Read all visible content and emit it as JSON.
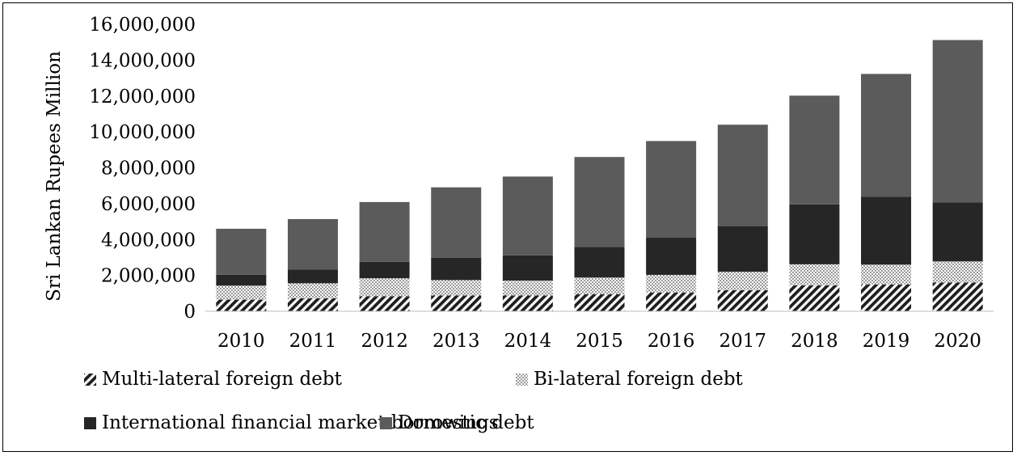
{
  "chart_data": {
    "type": "bar",
    "stacked": true,
    "ylabel": "Sri Lankan Rupees Million",
    "xlabel": "",
    "title": "",
    "ylim": [
      0,
      16000000
    ],
    "yticks": [
      0,
      2000000,
      4000000,
      6000000,
      8000000,
      10000000,
      12000000,
      14000000,
      16000000
    ],
    "ytick_labels": [
      "0",
      "2,000,000",
      "4,000,000",
      "6,000,000",
      "8,000,000",
      "10,000,000",
      "12,000,000",
      "14,000,000",
      "16,000,000"
    ],
    "grid": false,
    "legend_position": "bottom",
    "categories": [
      "2010",
      "2011",
      "2012",
      "2013",
      "2014",
      "2015",
      "2016",
      "2017",
      "2018",
      "2019",
      "2020"
    ],
    "series": [
      {
        "name": "Multi-lateral foreign debt",
        "pattern": "diagonal-hatch",
        "color": "#1f1f1f",
        "values": [
          650000,
          720000,
          840000,
          880000,
          880000,
          950000,
          1050000,
          1180000,
          1450000,
          1500000,
          1600000
        ]
      },
      {
        "name": "Bi-lateral foreign debt",
        "pattern": "checker",
        "color": "#9a9a9a",
        "values": [
          780000,
          840000,
          1000000,
          860000,
          830000,
          930000,
          980000,
          1020000,
          1170000,
          1100000,
          1180000
        ]
      },
      {
        "name": "International financial market borrowings",
        "pattern": "solid",
        "color": "#262626",
        "values": [
          610000,
          760000,
          920000,
          1250000,
          1410000,
          1700000,
          2070000,
          2550000,
          3340000,
          3780000,
          3280000
        ]
      },
      {
        "name": "Domestic debt",
        "pattern": "solid",
        "color": "#5b5b5b",
        "values": [
          2560000,
          2820000,
          3330000,
          3920000,
          4390000,
          5020000,
          5390000,
          5650000,
          6060000,
          6850000,
          9060000
        ]
      }
    ]
  }
}
